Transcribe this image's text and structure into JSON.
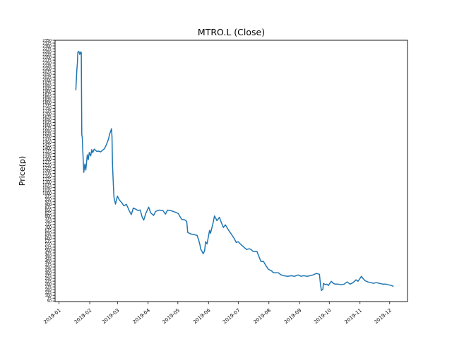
{
  "chart_data": {
    "type": "line",
    "title": "MTRO.L (Close)",
    "ylabel": "Price(p)",
    "xlabel": "",
    "legend": "none",
    "grid": false,
    "background": "#ffffff",
    "line_color": "#1f77b4",
    "axis_color": "#000000",
    "xlim_days": [
      -3,
      353
    ],
    "ylim": [
      45,
      2350
    ],
    "y_ticks": {
      "min": 50,
      "max": 2350,
      "step": 25
    },
    "x_ticks": [
      {
        "label": "2019-01",
        "day": 1
      },
      {
        "label": "2019-02",
        "day": 32
      },
      {
        "label": "2019-03",
        "day": 60
      },
      {
        "label": "2019-04",
        "day": 91
      },
      {
        "label": "2019-05",
        "day": 121
      },
      {
        "label": "2019-06",
        "day": 152
      },
      {
        "label": "2019-07",
        "day": 182
      },
      {
        "label": "2019-08",
        "day": 213
      },
      {
        "label": "2019-09",
        "day": 244
      },
      {
        "label": "2019-10",
        "day": 274
      },
      {
        "label": "2019-11",
        "day": 305
      },
      {
        "label": "2019-12",
        "day": 335
      }
    ],
    "series": [
      {
        "name": "Close",
        "x_unit": "day_of_year_2019",
        "points": [
          [
            18,
            1912
          ],
          [
            19,
            2090
          ],
          [
            19.5,
            2140
          ],
          [
            20,
            2245
          ],
          [
            21,
            2252
          ],
          [
            22,
            2225
          ],
          [
            23,
            2248
          ],
          [
            23.5,
            2242
          ],
          [
            24,
            1515
          ],
          [
            24.5,
            1495
          ],
          [
            25,
            1380
          ],
          [
            26,
            1185
          ],
          [
            27,
            1258
          ],
          [
            28,
            1205
          ],
          [
            29.5,
            1340
          ],
          [
            30.5,
            1296
          ],
          [
            31.5,
            1360
          ],
          [
            33,
            1330
          ],
          [
            34,
            1385
          ],
          [
            35,
            1358
          ],
          [
            36.5,
            1390
          ],
          [
            39,
            1370
          ],
          [
            41,
            1372
          ],
          [
            43,
            1365
          ],
          [
            45,
            1380
          ],
          [
            47,
            1395
          ],
          [
            49,
            1433
          ],
          [
            51,
            1480
          ],
          [
            52,
            1520
          ],
          [
            54,
            1570
          ],
          [
            54.5,
            1495
          ],
          [
            55,
            1250
          ],
          [
            56,
            1050
          ],
          [
            56.5,
            966
          ],
          [
            58,
            905
          ],
          [
            60,
            975
          ],
          [
            61.5,
            947
          ],
          [
            63,
            930
          ],
          [
            64.5,
            916
          ],
          [
            66.5,
            890
          ],
          [
            69,
            903
          ],
          [
            70,
            885
          ],
          [
            72,
            845
          ],
          [
            74,
            812
          ],
          [
            76,
            870
          ],
          [
            78.5,
            860
          ],
          [
            81,
            848
          ],
          [
            83,
            853
          ],
          [
            85,
            790
          ],
          [
            86.5,
            763
          ],
          [
            88.5,
            820
          ],
          [
            91.5,
            878
          ],
          [
            93.5,
            828
          ],
          [
            96.5,
            805
          ],
          [
            98.5,
            840
          ],
          [
            102,
            852
          ],
          [
            106,
            847
          ],
          [
            108.5,
            816
          ],
          [
            110.5,
            852
          ],
          [
            114,
            847
          ],
          [
            118,
            835
          ],
          [
            121.5,
            822
          ],
          [
            123,
            797
          ],
          [
            125,
            770
          ],
          [
            128,
            766
          ],
          [
            130,
            752
          ],
          [
            131,
            655
          ],
          [
            134,
            641
          ],
          [
            138,
            635
          ],
          [
            140.5,
            628
          ],
          [
            142,
            590
          ],
          [
            143.5,
            540
          ],
          [
            144,
            510
          ],
          [
            145.5,
            486
          ],
          [
            146.5,
            467
          ],
          [
            148,
            492
          ],
          [
            149,
            573
          ],
          [
            150.5,
            554
          ],
          [
            153,
            673
          ],
          [
            154,
            648
          ],
          [
            156.5,
            735
          ],
          [
            158,
            800
          ],
          [
            159,
            785
          ],
          [
            160.5,
            758
          ],
          [
            163,
            788
          ],
          [
            165,
            740
          ],
          [
            167,
            698
          ],
          [
            169,
            722
          ],
          [
            172,
            678
          ],
          [
            175,
            640
          ],
          [
            178,
            600
          ],
          [
            180,
            566
          ],
          [
            182,
            573
          ],
          [
            184,
            554
          ],
          [
            188,
            523
          ],
          [
            190.5,
            504
          ],
          [
            193,
            511
          ],
          [
            195,
            504
          ],
          [
            197,
            488
          ],
          [
            199,
            486
          ],
          [
            201,
            486
          ],
          [
            203.5,
            430
          ],
          [
            205,
            398
          ],
          [
            207.5,
            398
          ],
          [
            210,
            361
          ],
          [
            212.5,
            329
          ],
          [
            215.5,
            317
          ],
          [
            217.5,
            299
          ],
          [
            220.5,
            299
          ],
          [
            222.5,
            299
          ],
          [
            225,
            282
          ],
          [
            228,
            273
          ],
          [
            232,
            268
          ],
          [
            235.5,
            273
          ],
          [
            239,
            268
          ],
          [
            242.5,
            280
          ],
          [
            245.5,
            268
          ],
          [
            248,
            273
          ],
          [
            252,
            268
          ],
          [
            254.5,
            273
          ],
          [
            257.5,
            280
          ],
          [
            261,
            293
          ],
          [
            264,
            286
          ],
          [
            265,
            200
          ],
          [
            266,
            142
          ],
          [
            267.5,
            155
          ],
          [
            268,
            206
          ],
          [
            270,
            193
          ],
          [
            271.5,
            199
          ],
          [
            273,
            187
          ],
          [
            274.5,
            206
          ],
          [
            276,
            224
          ],
          [
            278,
            206
          ],
          [
            280,
            199
          ],
          [
            283,
            199
          ],
          [
            286,
            193
          ],
          [
            289,
            199
          ],
          [
            292,
            218
          ],
          [
            295,
            199
          ],
          [
            298,
            212
          ],
          [
            301,
            237
          ],
          [
            303,
            224
          ],
          [
            306.5,
            268
          ],
          [
            308,
            249
          ],
          [
            310,
            230
          ],
          [
            313,
            218
          ],
          [
            316,
            212
          ],
          [
            318.5,
            206
          ],
          [
            321.5,
            212
          ],
          [
            324.5,
            206
          ],
          [
            328,
            199
          ],
          [
            331,
            199
          ],
          [
            333.5,
            193
          ],
          [
            336.5,
            187
          ],
          [
            338.5,
            181
          ]
        ]
      }
    ]
  }
}
